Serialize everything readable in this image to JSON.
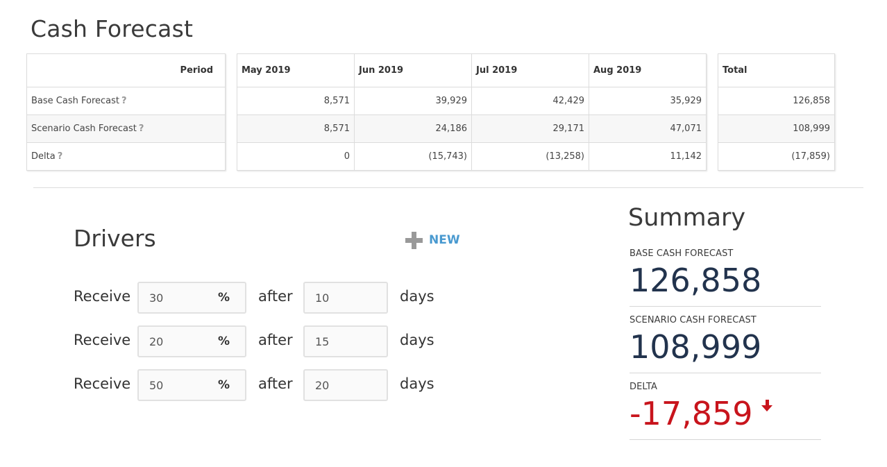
{
  "title": "Cash Forecast",
  "forecast_table": {
    "period_header": "Period",
    "months": [
      "May 2019",
      "Jun 2019",
      "Jul 2019",
      "Aug 2019"
    ],
    "total_header": "Total",
    "help_icon": "?",
    "rows": [
      {
        "label": "Base Cash Forecast",
        "values": [
          "8,571",
          "39,929",
          "42,429",
          "35,929"
        ],
        "total": "126,858"
      },
      {
        "label": "Scenario Cash Forecast",
        "values": [
          "8,571",
          "24,186",
          "29,171",
          "47,071"
        ],
        "total": "108,999"
      },
      {
        "label": "Delta",
        "values": [
          "0",
          "(15,743)",
          "(13,258)",
          "11,142"
        ],
        "total": "(17,859)"
      }
    ]
  },
  "drivers": {
    "title": "Drivers",
    "new_label": "NEW",
    "rows": [
      {
        "receive": "Receive",
        "percent": "30",
        "pct_symbol": "%",
        "after": "after",
        "days_value": "10",
        "days": "days"
      },
      {
        "receive": "Receive",
        "percent": "20",
        "pct_symbol": "%",
        "after": "after",
        "days_value": "15",
        "days": "days"
      },
      {
        "receive": "Receive",
        "percent": "50",
        "pct_symbol": "%",
        "after": "after",
        "days_value": "20",
        "days": "days"
      }
    ]
  },
  "summary": {
    "title": "Summary",
    "base_label": "BASE CASH FORECAST",
    "base_value": "126,858",
    "scenario_label": "SCENARIO CASH FORECAST",
    "scenario_value": "108,999",
    "delta_label": "DELTA",
    "delta_value": "-17,859",
    "delta_color": "#c8141c",
    "delta_icon": "arrow-down-icon"
  }
}
